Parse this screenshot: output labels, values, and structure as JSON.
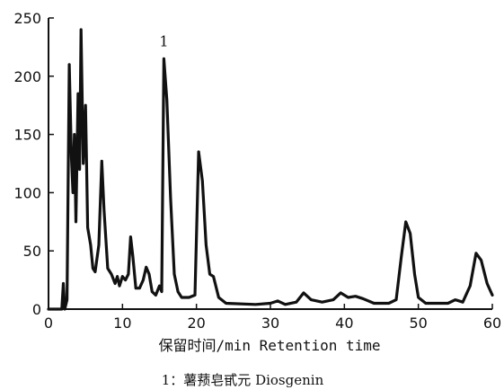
{
  "chart_data": {
    "type": "line",
    "title": "",
    "xlabel": "保留时间/min  Retention time",
    "ylabel": "",
    "xlim": [
      0,
      60
    ],
    "ylim": [
      0,
      250
    ],
    "x_ticks": [
      0,
      10,
      20,
      30,
      40,
      50,
      60
    ],
    "y_ticks": [
      0,
      50,
      100,
      150,
      200,
      250
    ],
    "grid": false,
    "legend": "none",
    "line_color": "#111111",
    "series": [
      {
        "points": [
          [
            0,
            0
          ],
          [
            1.8,
            0
          ],
          [
            2.0,
            22
          ],
          [
            2.2,
            0
          ],
          [
            2.5,
            8
          ],
          [
            2.8,
            210
          ],
          [
            3.1,
            130
          ],
          [
            3.3,
            100
          ],
          [
            3.5,
            150
          ],
          [
            3.7,
            75
          ],
          [
            4.0,
            185
          ],
          [
            4.2,
            120
          ],
          [
            4.4,
            240
          ],
          [
            4.7,
            125
          ],
          [
            5.0,
            175
          ],
          [
            5.3,
            70
          ],
          [
            5.7,
            55
          ],
          [
            6.0,
            35
          ],
          [
            6.3,
            32
          ],
          [
            6.8,
            55
          ],
          [
            7.2,
            127
          ],
          [
            7.5,
            85
          ],
          [
            8.0,
            35
          ],
          [
            8.5,
            30
          ],
          [
            9.0,
            22
          ],
          [
            9.3,
            28
          ],
          [
            9.6,
            20
          ],
          [
            10.0,
            28
          ],
          [
            10.4,
            25
          ],
          [
            10.8,
            30
          ],
          [
            11.1,
            62
          ],
          [
            11.4,
            45
          ],
          [
            11.8,
            18
          ],
          [
            12.3,
            18
          ],
          [
            12.8,
            25
          ],
          [
            13.2,
            36
          ],
          [
            13.6,
            30
          ],
          [
            14.0,
            15
          ],
          [
            14.5,
            12
          ],
          [
            15.0,
            20
          ],
          [
            15.3,
            15
          ],
          [
            15.6,
            215
          ],
          [
            16.0,
            180
          ],
          [
            16.5,
            95
          ],
          [
            17.0,
            30
          ],
          [
            17.5,
            15
          ],
          [
            18.0,
            10
          ],
          [
            19.0,
            10
          ],
          [
            19.8,
            12
          ],
          [
            20.3,
            135
          ],
          [
            20.8,
            110
          ],
          [
            21.3,
            55
          ],
          [
            21.8,
            30
          ],
          [
            22.3,
            28
          ],
          [
            23.0,
            10
          ],
          [
            24.0,
            5
          ],
          [
            28.0,
            4
          ],
          [
            30.0,
            5
          ],
          [
            31.0,
            7
          ],
          [
            32.0,
            4
          ],
          [
            33.5,
            6
          ],
          [
            34.5,
            14
          ],
          [
            35.5,
            8
          ],
          [
            37.0,
            6
          ],
          [
            38.5,
            8
          ],
          [
            39.5,
            14
          ],
          [
            40.5,
            10
          ],
          [
            41.5,
            11
          ],
          [
            42.5,
            9
          ],
          [
            44.0,
            5
          ],
          [
            46.0,
            5
          ],
          [
            47.0,
            8
          ],
          [
            47.7,
            45
          ],
          [
            48.3,
            75
          ],
          [
            48.9,
            65
          ],
          [
            49.5,
            30
          ],
          [
            50.0,
            10
          ],
          [
            51.0,
            5
          ],
          [
            54.0,
            5
          ],
          [
            55.0,
            8
          ],
          [
            56.0,
            6
          ],
          [
            57.0,
            20
          ],
          [
            57.8,
            48
          ],
          [
            58.5,
            42
          ],
          [
            59.3,
            22
          ],
          [
            60.0,
            12
          ]
        ]
      }
    ],
    "annotations": [
      {
        "text": "1",
        "x": 15.6,
        "y": 215
      }
    ],
    "caption": "1：薯蓣皂甙元 Diosgenin"
  }
}
